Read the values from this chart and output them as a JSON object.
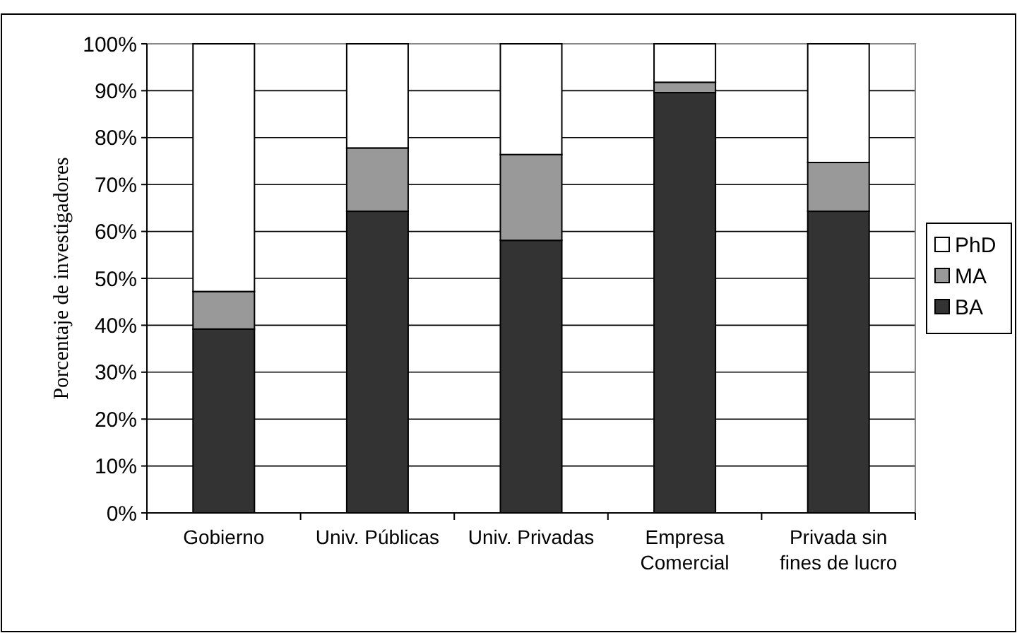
{
  "chart_data": {
    "type": "bar",
    "stacked": true,
    "ylabel": "Porcentaje de investigadores",
    "categories": [
      "Gobierno",
      "Univ. Públicas",
      "Univ. Privadas",
      "Empresa Comercial",
      "Privada sin fines de lucro"
    ],
    "series": [
      {
        "name": "BA",
        "color": "#333333",
        "values": [
          39.2,
          64.3,
          58.1,
          89.6,
          64.3
        ]
      },
      {
        "name": "MA",
        "color": "#999999",
        "values": [
          8,
          13.5,
          18.3,
          2.2,
          10.4
        ]
      },
      {
        "name": "PhD",
        "color": "#ffffff",
        "values": [
          52.8,
          22.2,
          23.6,
          8.2,
          25.3
        ]
      }
    ],
    "ylim": [
      0,
      100
    ],
    "yticks": [
      {
        "value": 0,
        "label": "0%"
      },
      {
        "value": 10,
        "label": "10%"
      },
      {
        "value": 20,
        "label": "20%"
      },
      {
        "value": 30,
        "label": "30%"
      },
      {
        "value": 40,
        "label": "40%"
      },
      {
        "value": 50,
        "label": "50%"
      },
      {
        "value": 60,
        "label": "60%"
      },
      {
        "value": 70,
        "label": "70%"
      },
      {
        "value": 80,
        "label": "80%"
      },
      {
        "value": 90,
        "label": "90%"
      },
      {
        "value": 100,
        "label": "100%"
      }
    ],
    "grid": "y",
    "legend": "right"
  }
}
